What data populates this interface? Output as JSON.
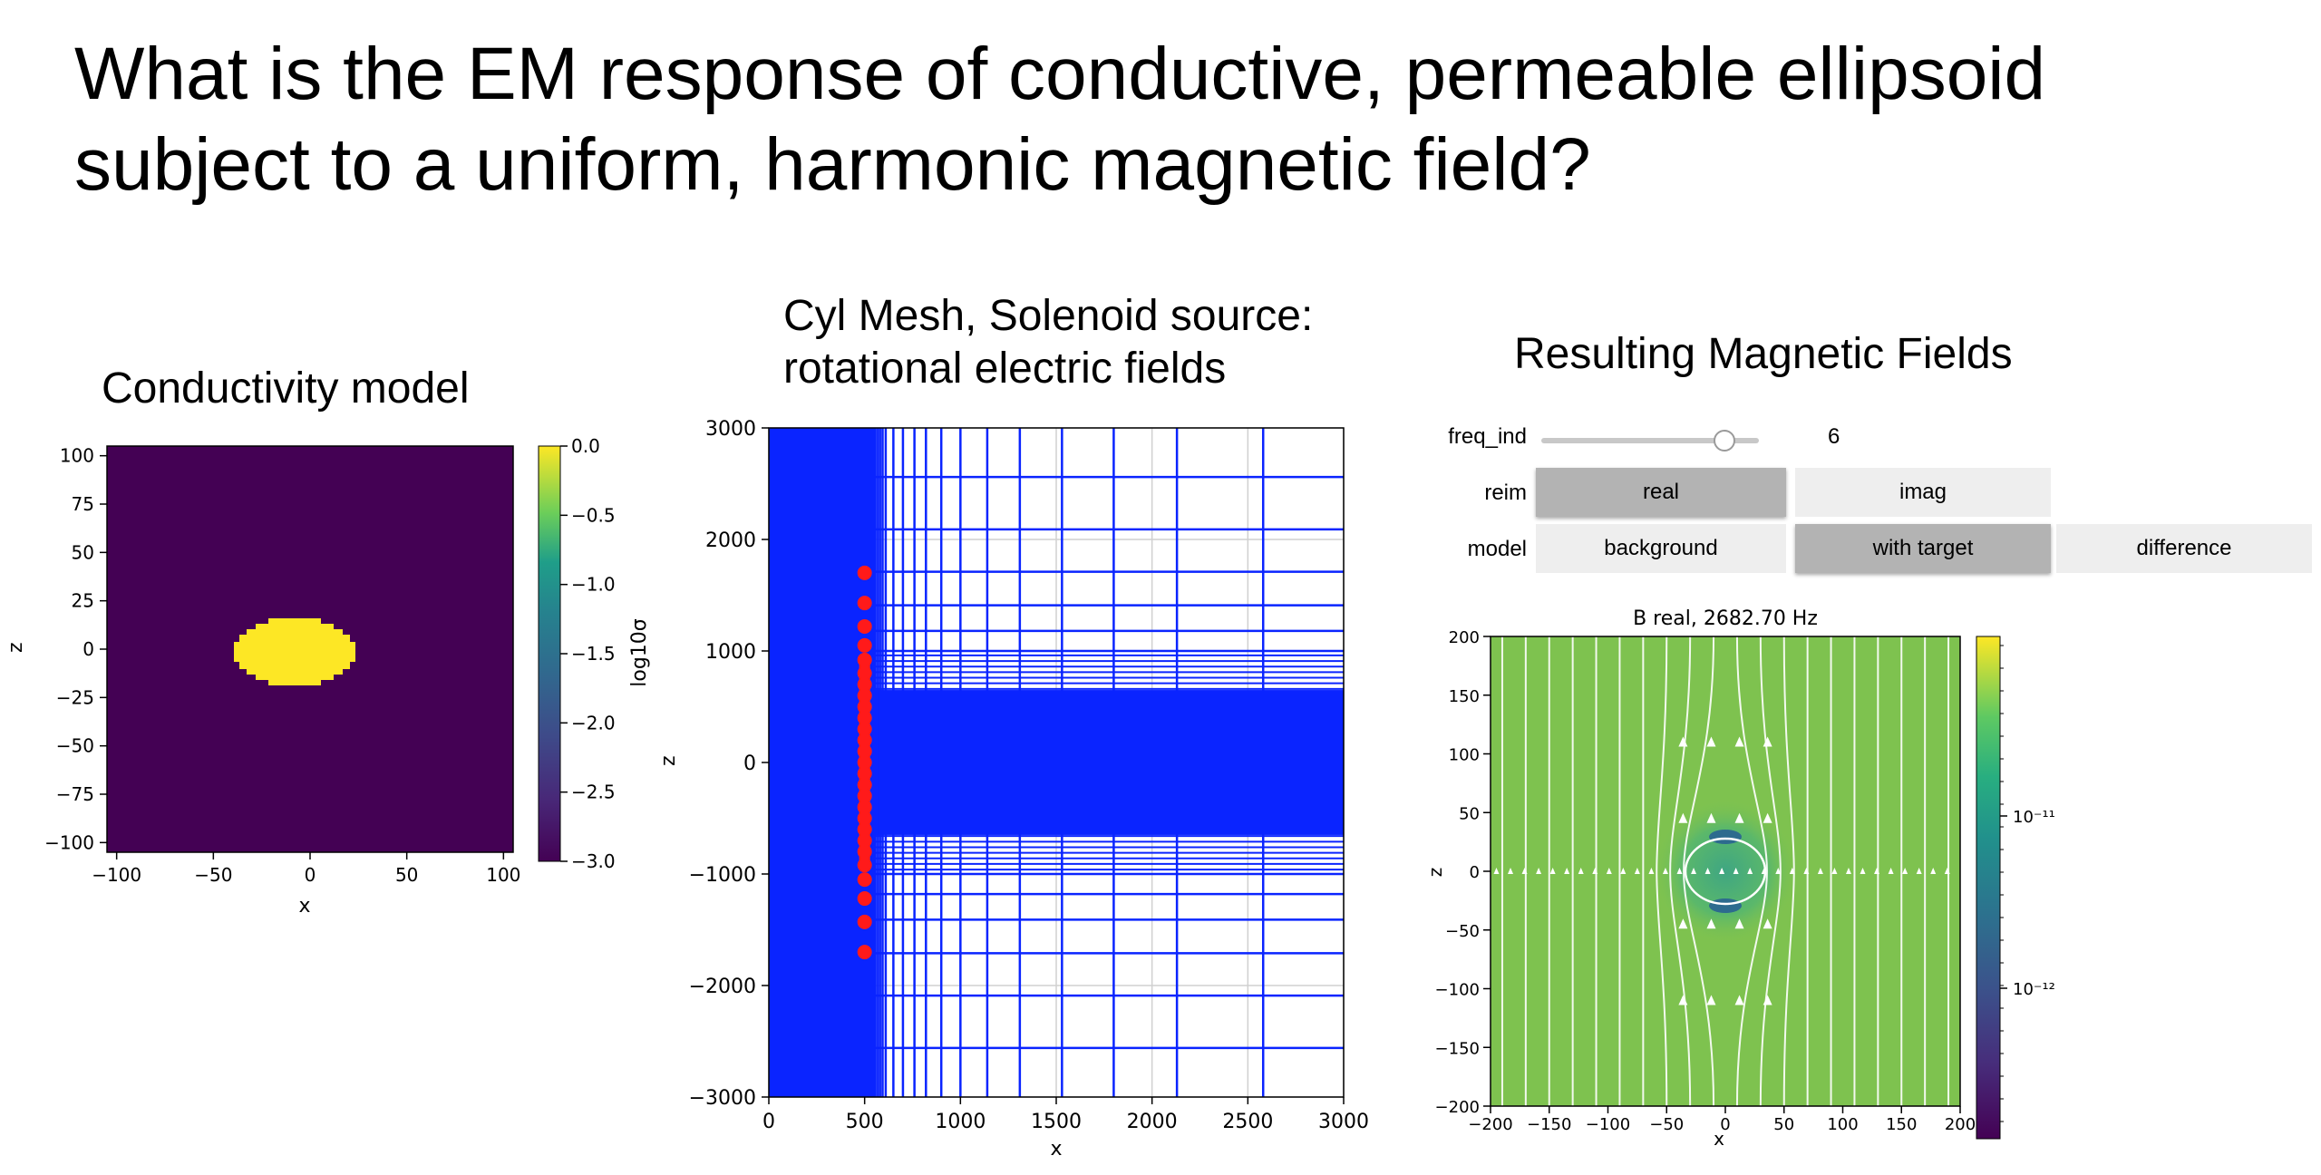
{
  "slide_title": "What is the EM response of conductive, permeable ellipsoid subject to a uniform, harmonic magnetic field?",
  "panel1": {
    "title": "Conductivity model",
    "chart_data": {
      "type": "heatmap",
      "title": "",
      "xlabel": "x",
      "ylabel": "z",
      "xlim": [
        -105,
        105
      ],
      "ylim": [
        -105,
        105
      ],
      "xticks": [
        "−100",
        "−50",
        "0",
        "50",
        "100"
      ],
      "yticks": [
        "100",
        "75",
        "50",
        "25",
        "0",
        "−25",
        "−50",
        "−75",
        "−100"
      ],
      "colorbar_label": "log10σ",
      "colorbar_ticks": [
        "0.0",
        "−0.5",
        "−1.0",
        "−1.5",
        "−2.0",
        "−2.5",
        "−3.0"
      ],
      "colorbar_range": [
        -3.0,
        0.0
      ],
      "background_value": -3.0,
      "ellipsoid_value": 0.0,
      "ellipsoid": {
        "cx": 0,
        "cz": 0,
        "rx": 40,
        "rz": 20
      }
    }
  },
  "panel2": {
    "title_line1": "Cyl Mesh, Solenoid source:",
    "title_line2": "rotational electric fields",
    "chart_data": {
      "type": "scatter",
      "title": "",
      "xlabel": "x",
      "ylabel": "z",
      "xlim": [
        0,
        3000
      ],
      "ylim": [
        -3000,
        3000
      ],
      "xticks": [
        "0",
        "500",
        "1000",
        "1500",
        "2000",
        "2500",
        "3000"
      ],
      "yticks": [
        "3000",
        "2000",
        "1000",
        "0",
        "−1000",
        "−2000",
        "−3000"
      ],
      "source_points_x": 500,
      "source_points_z": [
        1700,
        1430,
        1220,
        1050,
        920,
        800,
        700,
        600,
        500,
        400,
        300,
        200,
        100,
        0,
        -100,
        -200,
        -300,
        -400,
        -500,
        -600,
        -700,
        -800,
        -920,
        -1050,
        -1220,
        -1430,
        -1700
      ],
      "mesh_x_lines": [
        610,
        650,
        700,
        760,
        820,
        900,
        1000,
        1140,
        1310,
        1530,
        1800,
        2130,
        2580
      ],
      "mesh_z_lines": [
        2560,
        2090,
        1710,
        1410,
        1180,
        1000,
        -1000,
        -1180,
        -1410,
        -1710,
        -2090,
        -2560
      ],
      "mesh_color": "#0a24ff",
      "source_color": "#ff1a1a"
    }
  },
  "panel3": {
    "title": "Resulting Magnetic Fields",
    "widgets": {
      "freq_label": "freq_ind",
      "freq_value": "6",
      "freq_fraction": 0.84,
      "reim_label": "reim",
      "reim_options": [
        "real",
        "imag"
      ],
      "reim_selected": "real",
      "model_label": "model",
      "model_options": [
        "background",
        "with target",
        "difference"
      ],
      "model_selected": "with target"
    },
    "chart_data": {
      "type": "heatmap",
      "title": "B real,    2682.70 Hz",
      "xlabel": "x",
      "ylabel": "z",
      "xlim": [
        -200,
        200
      ],
      "ylim": [
        -200,
        200
      ],
      "xticks": [
        "−200",
        "−150",
        "−100",
        "−50",
        "0",
        "50",
        "100",
        "150",
        "200"
      ],
      "yticks": [
        "200",
        "150",
        "100",
        "50",
        "0",
        "−50",
        "−100",
        "−150",
        "−200"
      ],
      "colorbar_ticks": [
        "10⁻¹¹",
        "10⁻¹²"
      ],
      "colorbar_scale": "log",
      "streamlines": "vertical field lines deflected around target",
      "background_color": "#7ec24f"
    }
  }
}
